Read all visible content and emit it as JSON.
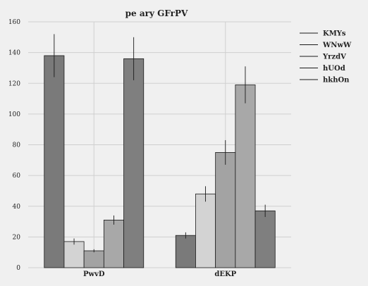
{
  "chart_data": {
    "type": "bar",
    "title": "pe ary GFrPV",
    "xlabel": "",
    "ylabel": "",
    "categories": [
      "PwvD",
      "dEKP"
    ],
    "ylim": [
      0,
      160
    ],
    "yticks": [
      0,
      20,
      40,
      60,
      80,
      100,
      120,
      140,
      160
    ],
    "grid": true,
    "legend_position": "right",
    "series": [
      {
        "name": "KMYs",
        "values": [
          138,
          21
        ],
        "errors": [
          14,
          2
        ],
        "color": "#7a7a7a"
      },
      {
        "name": "WNwW",
        "values": [
          17,
          48
        ],
        "errors": [
          2,
          5
        ],
        "color": "#d3d3d3"
      },
      {
        "name": "YrzdV",
        "values": [
          11,
          75
        ],
        "errors": [
          1,
          8
        ],
        "color": "#a3a3a3"
      },
      {
        "name": "hUOd",
        "values": [
          31,
          119
        ],
        "errors": [
          3,
          12
        ],
        "color": "#a8a8a8"
      },
      {
        "name": "hkhOn",
        "values": [
          136,
          37
        ],
        "errors": [
          14,
          4
        ],
        "color": "#7f7f7f"
      }
    ]
  }
}
